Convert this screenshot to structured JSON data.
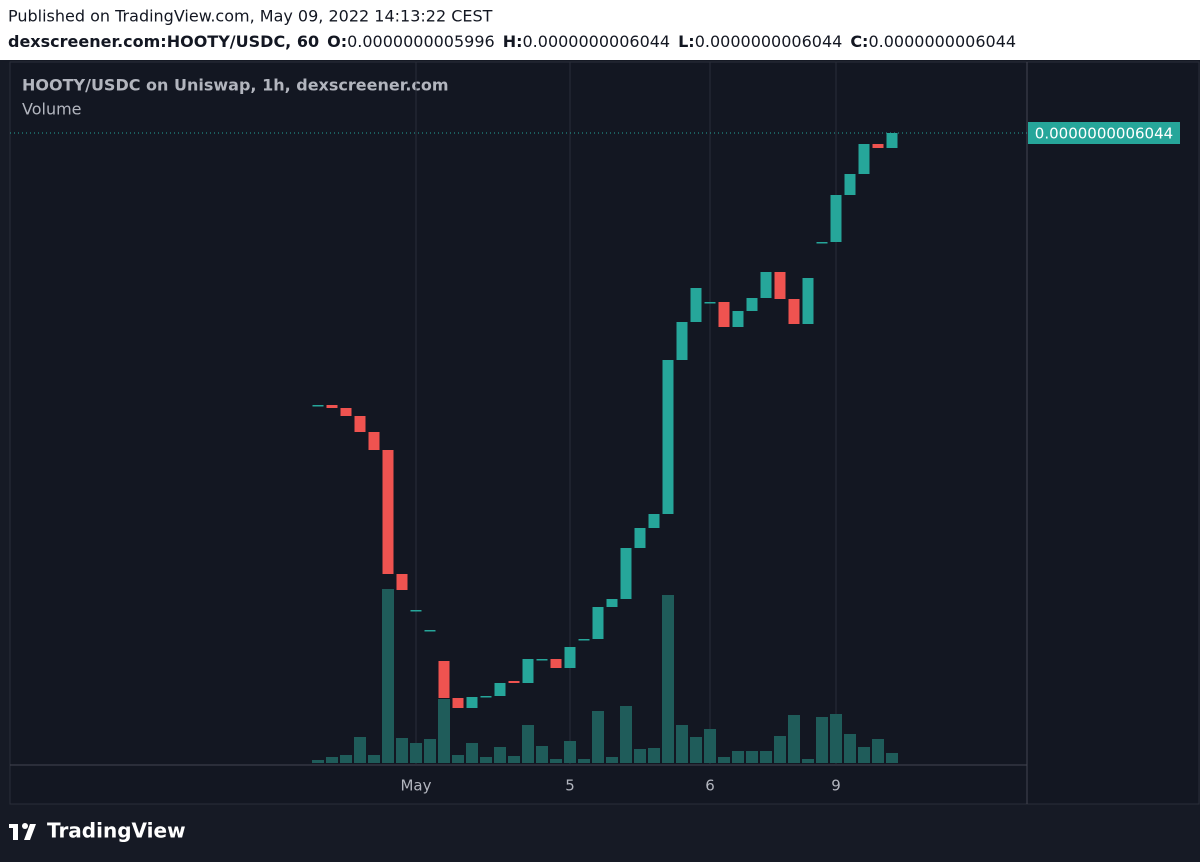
{
  "header": {
    "published": "Published on TradingView.com, May 09, 2022 14:13:22 CEST",
    "symbol": "dexscreener.com:HOOTY/USDC, 60",
    "ohlc": [
      {
        "label": "O:",
        "value": "0.0000000005996"
      },
      {
        "label": "H:",
        "value": "0.0000000006044"
      },
      {
        "label": "L:",
        "value": "0.0000000006044"
      },
      {
        "label": "C:",
        "value": "0.0000000006044"
      }
    ]
  },
  "chart_data": {
    "type": "candlestick",
    "title": "HOOTY/USDC on Uniswap, 1h, dexscreener.com",
    "volume_title": "Volume",
    "categories": [
      null,
      null,
      null,
      null,
      null,
      null,
      null,
      "May",
      null,
      null,
      null,
      null,
      null,
      null,
      null,
      null,
      null,
      null,
      "5",
      null,
      null,
      null,
      null,
      null,
      null,
      null,
      null,
      null,
      "6",
      null,
      null,
      null,
      null,
      null,
      null,
      null,
      null,
      "9",
      null,
      null,
      null,
      null
    ],
    "open": [
      5.1736e-10,
      5.1736e-10,
      5.164e-10,
      5.1384e-10,
      5.0872e-10,
      5.0296e-10,
      4.6328e-10,
      4.5176e-10,
      4.4536e-10,
      4.3544e-10,
      4.236e-10,
      4.204e-10,
      4.2424e-10,
      4.2424e-10,
      4.2904e-10,
      4.284e-10,
      4.3608e-10,
      4.3608e-10,
      4.332e-10,
      4.4248e-10,
      4.4248e-10,
      4.5272e-10,
      4.5528e-10,
      4.716e-10,
      4.78e-10,
      4.8248e-10,
      5.3176e-10,
      5.4392e-10,
      5.5032e-10,
      5.5032e-10,
      5.4232e-10,
      5.4744e-10,
      5.516e-10,
      5.5992e-10,
      5.5128e-10,
      5.4328e-10,
      5.6952e-10,
      5.6952e-10,
      5.8456e-10,
      5.9128e-10,
      6.0088e-10,
      5.996e-10
    ],
    "close": [
      5.1736e-10,
      5.164e-10,
      5.1384e-10,
      5.0872e-10,
      5.0296e-10,
      4.6328e-10,
      4.5816e-10,
      4.5176e-10,
      4.4536e-10,
      4.236e-10,
      4.204e-10,
      4.2392e-10,
      4.2424e-10,
      4.284e-10,
      4.284e-10,
      4.3608e-10,
      4.3608e-10,
      4.332e-10,
      4.3992e-10,
      4.4248e-10,
      4.5272e-10,
      4.5528e-10,
      4.716e-10,
      4.78e-10,
      4.8248e-10,
      5.3176e-10,
      5.4392e-10,
      5.548e-10,
      5.5032e-10,
      5.4232e-10,
      5.4744e-10,
      5.516e-10,
      5.5992e-10,
      5.5128e-10,
      5.4328e-10,
      5.58e-10,
      5.6952e-10,
      5.8456e-10,
      5.9128e-10,
      6.0088e-10,
      5.996e-10,
      6.044e-10
    ],
    "volume": [
      3,
      6,
      8,
      26,
      8,
      174,
      25,
      20,
      24,
      64,
      8,
      20,
      6,
      16,
      7,
      38,
      17,
      4,
      22,
      4,
      52,
      6,
      57,
      14,
      15,
      168,
      38,
      26,
      34,
      6,
      12,
      12,
      12,
      27,
      48,
      4,
      46,
      49,
      29,
      16,
      24,
      10
    ],
    "up_color": "#26a69a",
    "down_color": "#ef5350",
    "volume_color": "#1f5c5a",
    "ylim": [
      4.0216e-10,
      6.2616e-10
    ],
    "last_price": {
      "value": 6.044e-10,
      "label": "0.0000000006044"
    }
  },
  "footer": {
    "brand": "TradingView"
  }
}
